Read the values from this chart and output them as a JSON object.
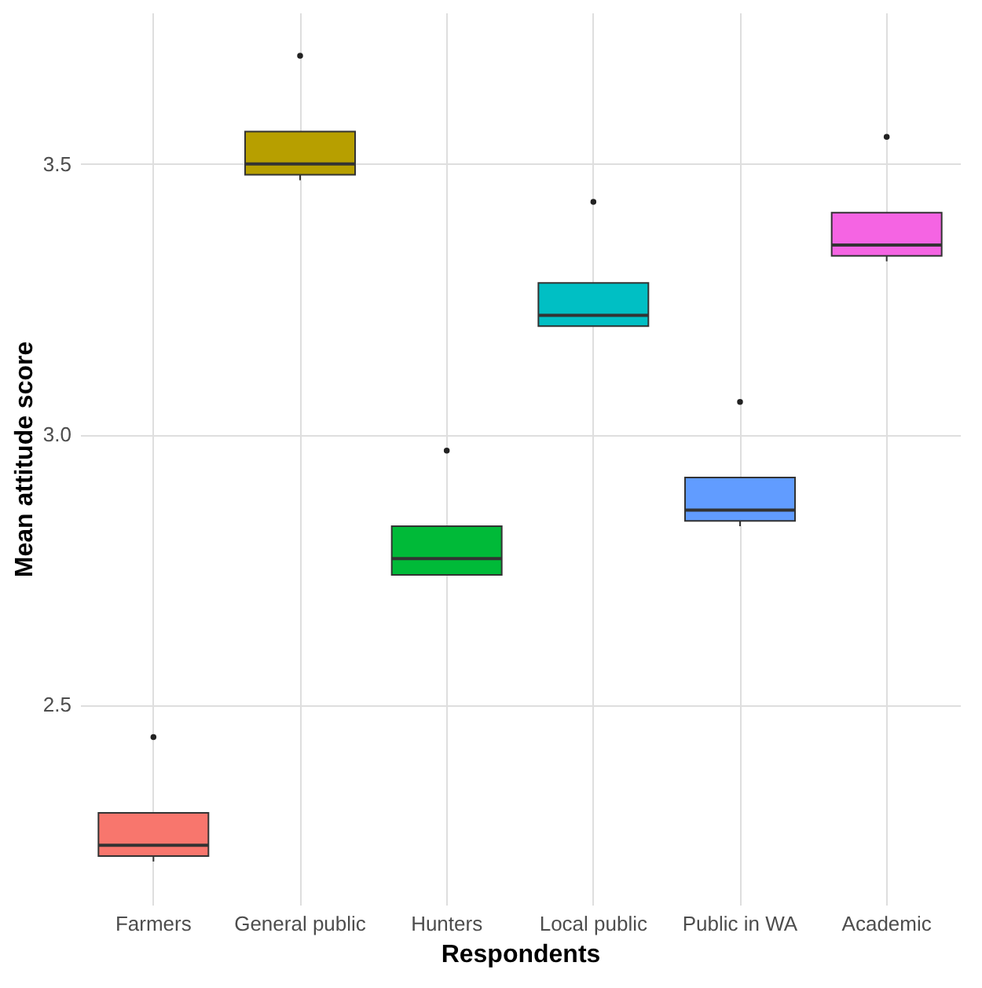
{
  "chart_data": {
    "type": "box",
    "xlabel": "Respondents",
    "ylabel": "Mean attitude score",
    "categories": [
      "Farmers",
      "General public",
      "Hunters",
      "Local public",
      "Public in WA",
      "Academic"
    ],
    "colors": [
      "#f8766d",
      "#b79f00",
      "#00ba38",
      "#00bfc4",
      "#619cff",
      "#f564e3"
    ],
    "boxes": [
      {
        "low": 2.21,
        "q1": 2.22,
        "median": 2.24,
        "q3": 2.3,
        "high": 2.3,
        "outliers": [
          2.44
        ]
      },
      {
        "low": 3.47,
        "q1": 3.48,
        "median": 3.5,
        "q3": 3.56,
        "high": 3.56,
        "outliers": [
          3.7
        ]
      },
      {
        "low": 2.74,
        "q1": 2.74,
        "median": 2.77,
        "q3": 2.83,
        "high": 2.83,
        "outliers": [
          2.97
        ]
      },
      {
        "low": 3.2,
        "q1": 3.2,
        "median": 3.22,
        "q3": 3.28,
        "high": 3.28,
        "outliers": [
          3.43
        ]
      },
      {
        "low": 2.83,
        "q1": 2.84,
        "median": 2.86,
        "q3": 2.92,
        "high": 2.92,
        "outliers": [
          3.06
        ]
      },
      {
        "low": 3.32,
        "q1": 3.33,
        "median": 3.35,
        "q3": 3.41,
        "high": 3.41,
        "outliers": [
          3.55
        ]
      }
    ],
    "ylim": [
      2.13,
      3.78
    ],
    "yticks": [
      2.5,
      {
        "value": 3.0,
        "label": "3.0"
      },
      3.5
    ],
    "grid": true
  }
}
